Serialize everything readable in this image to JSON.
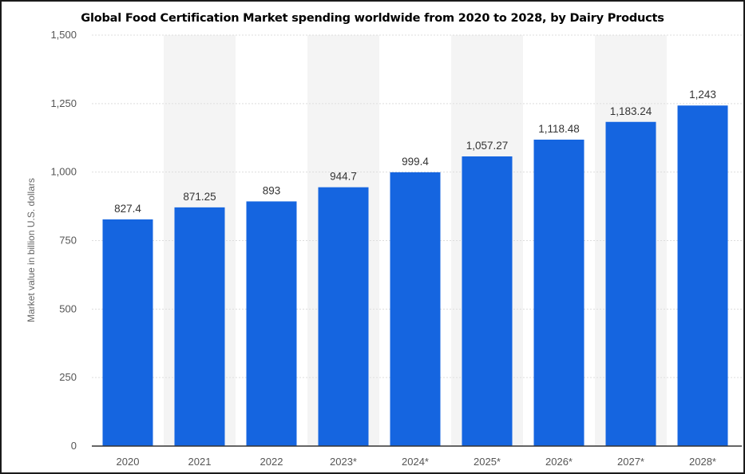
{
  "chart_data": {
    "type": "bar",
    "title": "Global Food Certification Market spending worldwide from 2020 to 2028, by Dairy Products",
    "xlabel": "",
    "ylabel": "Market value in billion U.S. dollars",
    "categories": [
      "2020",
      "2021",
      "2022",
      "2023*",
      "2024*",
      "2025*",
      "2026*",
      "2027*",
      "2028*"
    ],
    "values": [
      827.4,
      871.25,
      893,
      944.7,
      999.4,
      1057.27,
      1118.48,
      1183.24,
      1243
    ],
    "value_labels": [
      "827.4",
      "871.25",
      "893",
      "944.7",
      "999.4",
      "1,057.27",
      "1,118.48",
      "1,183.24",
      "1,243"
    ],
    "ylim": [
      0,
      1500
    ],
    "yticks": [
      0,
      250,
      500,
      750,
      1000,
      1250,
      1500
    ],
    "ytick_labels": [
      "0",
      "250",
      "500",
      "750",
      "1,000",
      "1,250",
      "1,500"
    ],
    "grid": true,
    "legend": "none",
    "colors": {
      "bar": "#1565e0",
      "band": "#f4f4f4",
      "grid": "#dddddd",
      "axis": "#333333"
    }
  }
}
